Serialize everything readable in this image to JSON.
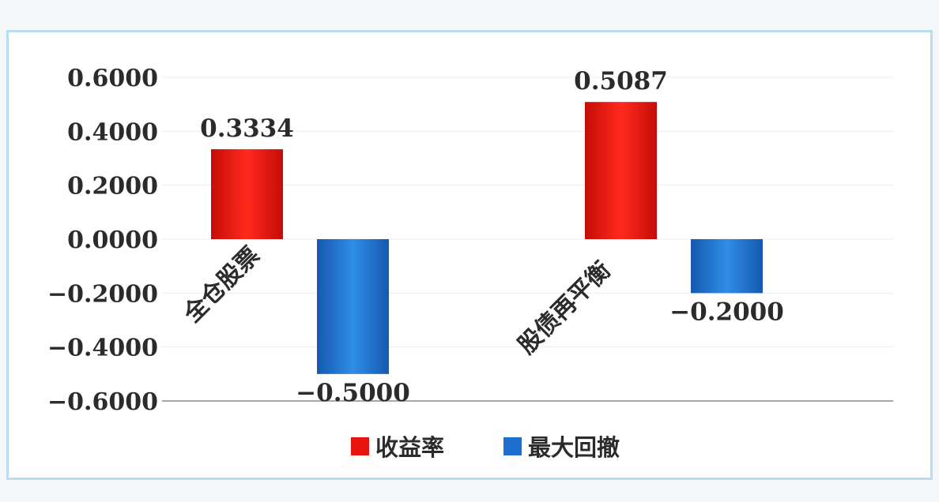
{
  "chart_data": {
    "type": "bar",
    "categories": [
      "全仓股票",
      "股债再平衡"
    ],
    "series": [
      {
        "name": "收益率",
        "values": [
          0.3334,
          0.5087
        ],
        "color": "#e8140d"
      },
      {
        "name": "最大回撤",
        "values": [
          -0.5,
          -0.2
        ],
        "color": "#1d6fcf"
      }
    ],
    "data_labels": [
      [
        "0.3334",
        "0.5087"
      ],
      [
        "−0.5000",
        "−0.2000"
      ]
    ],
    "ylim": [
      -0.6,
      0.6
    ],
    "yticks": [
      "0.6000",
      "0.4000",
      "0.2000",
      "0.0000",
      "−0.2000",
      "−0.4000",
      "−0.6000"
    ],
    "ytick_values": [
      0.6,
      0.4,
      0.2,
      0,
      -0.2,
      -0.4,
      -0.6
    ],
    "grid": true,
    "legend_position": "bottom"
  }
}
